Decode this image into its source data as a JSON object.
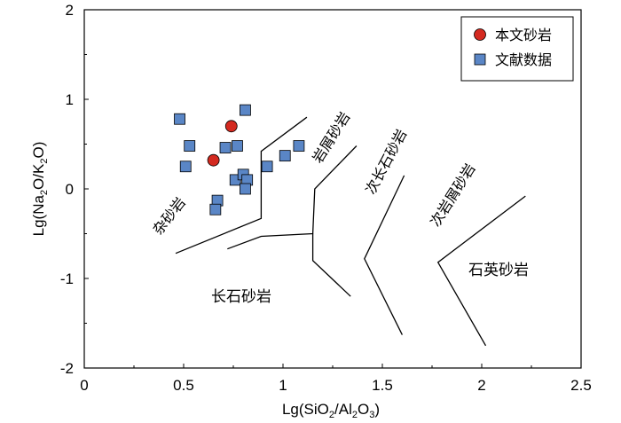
{
  "chart_data": {
    "type": "scatter",
    "title": "",
    "xlabel": "Lg(SiO2/Al2O3)",
    "ylabel": "Lg(Na2O/K2O)",
    "xlim": [
      0,
      2.5
    ],
    "ylim": [
      -2,
      2
    ],
    "xticks": [
      "0",
      "0.5",
      "1",
      "1.5",
      "2",
      "2.5"
    ],
    "xtick_values": [
      0,
      0.5,
      1,
      1.5,
      2,
      2.5
    ],
    "yticks": [
      "2",
      "1",
      "0",
      "-1",
      "-2"
    ],
    "ytick_values": [
      2,
      1,
      0,
      -1,
      -2
    ],
    "legend_position": "top-right",
    "series": [
      {
        "name": "本文砂岩",
        "marker": "circle",
        "color": "#d42a20",
        "points": [
          [
            0.74,
            0.7
          ],
          [
            0.65,
            0.32
          ]
        ]
      },
      {
        "name": "文献数据",
        "marker": "square",
        "color": "#5a86c6",
        "points": [
          [
            0.48,
            0.78
          ],
          [
            0.53,
            0.48
          ],
          [
            0.51,
            0.25
          ],
          [
            0.71,
            0.46
          ],
          [
            0.77,
            0.48
          ],
          [
            0.81,
            0.88
          ],
          [
            0.92,
            0.25
          ],
          [
            1.01,
            0.37
          ],
          [
            1.08,
            0.48
          ],
          [
            0.76,
            0.1
          ],
          [
            0.8,
            0.16
          ],
          [
            0.82,
            0.1
          ],
          [
            0.81,
            0.0
          ],
          [
            0.67,
            -0.13
          ],
          [
            0.66,
            -0.23
          ]
        ]
      }
    ],
    "boundaries": [
      [
        [
          0.46,
          -0.72
        ],
        [
          0.89,
          -0.33
        ],
        [
          0.89,
          0.42
        ],
        [
          1.12,
          0.8
        ]
      ],
      [
        [
          0.72,
          -0.67
        ],
        [
          0.89,
          -0.53
        ],
        [
          1.15,
          -0.5
        ],
        [
          1.16,
          0.0
        ],
        [
          1.37,
          0.48
        ]
      ],
      [
        [
          1.15,
          -0.5
        ],
        [
          1.15,
          -0.8
        ],
        [
          1.34,
          -1.2
        ]
      ],
      [
        [
          1.61,
          0.15
        ],
        [
          1.41,
          -0.78
        ],
        [
          1.6,
          -1.63
        ]
      ],
      [
        [
          2.22,
          -0.08
        ],
        [
          1.78,
          -0.82
        ],
        [
          2.02,
          -1.75
        ]
      ]
    ],
    "field_labels": {
      "greywacke": "杂砂岩",
      "lithic_arenite": "岩屑砂岩",
      "sub_arkose": "次长石砂岩",
      "sub_lithic_arenite": "次岩屑砂岩",
      "arkose": "长石砂岩",
      "quartz_arenite": "石英砂岩"
    },
    "axis_labels": {
      "x": {
        "a": "Lg(SiO",
        "s1": "2",
        "b": "/Al",
        "s2": "2",
        "c": "O",
        "s3": "3",
        "d": ")"
      },
      "y": {
        "a": "Lg(Na",
        "s1": "2",
        "b": "O/K",
        "s2": "2",
        "c": "O)"
      }
    }
  }
}
